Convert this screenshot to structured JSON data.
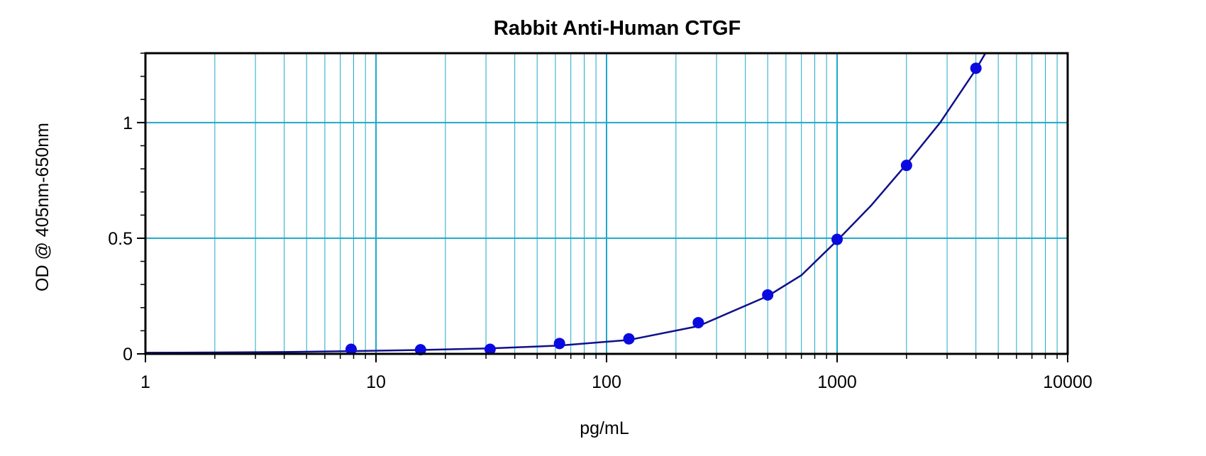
{
  "chart_data": {
    "type": "scatter",
    "title": "Rabbit Anti-Human CTGF",
    "xlabel": "pg/mL",
    "ylabel": "OD @ 405nm-650nm",
    "x_scale": "log",
    "xlim": [
      1,
      10000
    ],
    "ylim": [
      0,
      1.3
    ],
    "x_ticks": [
      {
        "value": 1,
        "label": "1"
      },
      {
        "value": 10,
        "label": "10"
      },
      {
        "value": 100,
        "label": "100"
      },
      {
        "value": 1000,
        "label": "1000"
      },
      {
        "value": 10000,
        "label": "10000"
      }
    ],
    "y_ticks": [
      {
        "value": 0,
        "label": "0"
      },
      {
        "value": 0.5,
        "label": "0.5"
      },
      {
        "value": 1,
        "label": "1"
      }
    ],
    "grid": true,
    "grid_color": "#1ea7c9",
    "marker_color": "#0a0ae0",
    "line_color": "#10108a",
    "series": [
      {
        "x": [
          7.8,
          15.6,
          31.25,
          62.5,
          125,
          250,
          500,
          1000,
          2000,
          4000
        ],
        "y": [
          0.02,
          0.018,
          0.02,
          0.045,
          0.065,
          0.135,
          0.255,
          0.495,
          0.815,
          1.235
        ]
      }
    ],
    "fit_curve": {
      "x": [
        1,
        2,
        4,
        7.8,
        15.6,
        31.25,
        62.5,
        125,
        250,
        500,
        700,
        1000,
        1400,
        2000,
        2800,
        4000,
        4400
      ],
      "y": [
        0.005,
        0.006,
        0.008,
        0.012,
        0.017,
        0.024,
        0.036,
        0.06,
        0.12,
        0.25,
        0.34,
        0.49,
        0.64,
        0.82,
        1.0,
        1.23,
        1.3
      ]
    }
  }
}
